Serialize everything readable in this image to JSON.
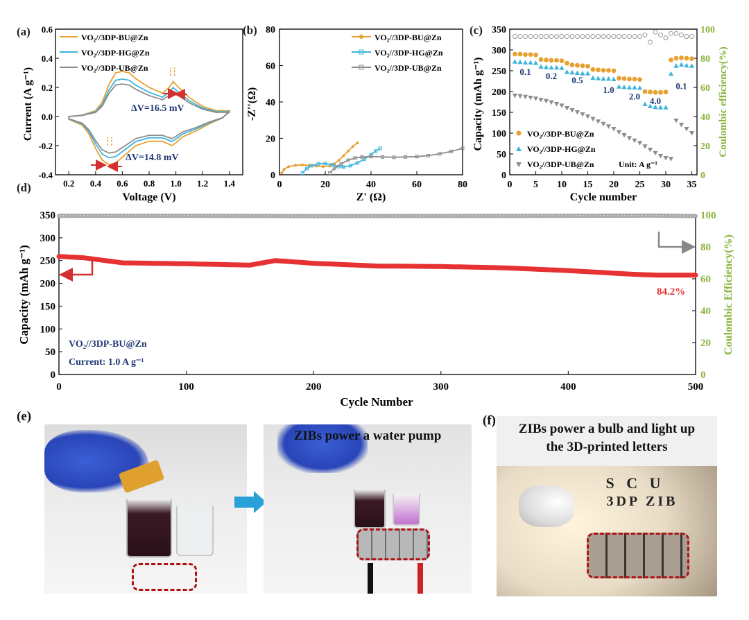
{
  "panel_labels": {
    "a": "(a)",
    "b": "(b)",
    "c": "(c)",
    "d": "(d)",
    "e": "(e)",
    "f": "(f)"
  },
  "colors": {
    "bu": "#e8a030",
    "hg": "#3cb4dc",
    "ub": "#8c8c8c",
    "red": "#e63232",
    "green": "#8ab43c",
    "navy": "#1f3a73",
    "arrow_red": "#d43030",
    "arrow_blue": "#2aa0d8"
  },
  "chart_data": [
    {
      "id": "a",
      "type": "line",
      "xlabel": "Voltage (V)",
      "ylabel": "Current (A g⁻¹)",
      "xlim": [
        0.1,
        1.5
      ],
      "ylim": [
        -0.4,
        0.6
      ],
      "xticks": [
        "0.2",
        "0.4",
        "0.6",
        "0.8",
        "1.0",
        "1.2",
        "1.4"
      ],
      "yticks": [
        "-0.4",
        "-0.2",
        "0.0",
        "0.2",
        "0.4",
        "0.6"
      ],
      "legend": [
        "VO₂//3DP-BU@Zn",
        "VO₂//3DP-HG@Zn",
        "VO₂//3DP-UB@Zn"
      ],
      "annotations": [
        "ΔV=16.5 mV",
        "ΔV=14.8 mV"
      ],
      "series": [
        {
          "name": "VO₂//3DP-BU@Zn",
          "color_key": "bu",
          "anodic_scale": 1.0,
          "cathodic_scale": 1.0
        },
        {
          "name": "VO₂//3DP-HG@Zn",
          "color_key": "hg",
          "anodic_scale": 0.83,
          "cathodic_scale": 0.86
        },
        {
          "name": "VO₂//3DP-UB@Zn",
          "color_key": "ub",
          "anodic_scale": 0.72,
          "cathodic_scale": 0.76
        }
      ],
      "curve_anodic": [
        [
          0.2,
          0.0
        ],
        [
          0.3,
          0.01
        ],
        [
          0.4,
          0.04
        ],
        [
          0.45,
          0.1
        ],
        [
          0.5,
          0.22
        ],
        [
          0.55,
          0.3
        ],
        [
          0.6,
          0.31
        ],
        [
          0.65,
          0.3
        ],
        [
          0.7,
          0.26
        ],
        [
          0.8,
          0.2
        ],
        [
          0.9,
          0.16
        ],
        [
          0.95,
          0.2
        ],
        [
          0.98,
          0.24
        ],
        [
          1.02,
          0.2
        ],
        [
          1.1,
          0.13
        ],
        [
          1.2,
          0.07
        ],
        [
          1.3,
          0.04
        ],
        [
          1.4,
          0.04
        ]
      ],
      "curve_cathodic": [
        [
          1.4,
          0.04
        ],
        [
          1.35,
          -0.01
        ],
        [
          1.25,
          -0.05
        ],
        [
          1.15,
          -0.1
        ],
        [
          1.05,
          -0.14
        ],
        [
          1.0,
          -0.18
        ],
        [
          0.97,
          -0.2
        ],
        [
          0.9,
          -0.17
        ],
        [
          0.8,
          -0.17
        ],
        [
          0.7,
          -0.2
        ],
        [
          0.6,
          -0.28
        ],
        [
          0.55,
          -0.32
        ],
        [
          0.5,
          -0.33
        ],
        [
          0.45,
          -0.3
        ],
        [
          0.4,
          -0.22
        ],
        [
          0.35,
          -0.12
        ],
        [
          0.3,
          -0.06
        ],
        [
          0.2,
          -0.02
        ]
      ]
    },
    {
      "id": "b",
      "type": "line",
      "xlabel": "Z' (Ω)",
      "ylabel": "-Z''(Ω)",
      "xlim": [
        0,
        80
      ],
      "ylim": [
        0,
        80
      ],
      "xticks": [
        "0",
        "20",
        "40",
        "60",
        "80"
      ],
      "yticks": [
        "0",
        "20",
        "40",
        "60",
        "80"
      ],
      "legend": [
        "VO₂//3DP-BU@Zn",
        "VO₂//3DP-HG@Zn",
        "VO₂//3DP-UB@Zn"
      ],
      "series": [
        {
          "name": "VO₂//3DP-BU@Zn",
          "color_key": "bu",
          "points": [
            [
              1,
              1
            ],
            [
              2,
              3
            ],
            [
              4,
              4.5
            ],
            [
              7,
              5.2
            ],
            [
              10,
              5.4
            ],
            [
              13,
              5.2
            ],
            [
              16,
              4.8
            ],
            [
              19,
              4.5
            ],
            [
              22,
              4.8
            ],
            [
              24,
              6
            ],
            [
              26,
              8
            ],
            [
              28,
              10.5
            ],
            [
              30,
              13
            ],
            [
              32,
              15.5
            ],
            [
              34,
              17.5
            ]
          ]
        },
        {
          "name": "VO₂//3DP-HG@Zn",
          "color_key": "hg",
          "points": [
            [
              10,
              1
            ],
            [
              12,
              3.5
            ],
            [
              14,
              5
            ],
            [
              17,
              6
            ],
            [
              20,
              6.2
            ],
            [
              23,
              5.5
            ],
            [
              26,
              4.5
            ],
            [
              28,
              4.2
            ],
            [
              31,
              5
            ],
            [
              34,
              6.5
            ],
            [
              37,
              8.5
            ],
            [
              40,
              11
            ],
            [
              42,
              13
            ],
            [
              44,
              14.5
            ]
          ]
        },
        {
          "name": "VO₂//3DP-UB@Zn",
          "color_key": "ub",
          "points": [
            [
              22,
              1
            ],
            [
              24,
              3.5
            ],
            [
              27,
              6
            ],
            [
              30,
              8
            ],
            [
              33,
              9.2
            ],
            [
              36,
              9.8
            ],
            [
              40,
              10
            ],
            [
              45,
              9.8
            ],
            [
              50,
              9.6
            ],
            [
              55,
              9.8
            ],
            [
              60,
              10
            ],
            [
              65,
              10.5
            ],
            [
              70,
              11.5
            ],
            [
              75,
              12.8
            ],
            [
              80,
              14.5
            ]
          ]
        }
      ]
    },
    {
      "id": "c",
      "type": "scatter",
      "xlabel": "Cycle number",
      "ylabel": "Capacity (mAh g⁻¹)",
      "y2label": "Coulombic efficiency(%)",
      "xlim": [
        0,
        36
      ],
      "ylim": [
        0,
        350
      ],
      "y2lim": [
        0,
        100
      ],
      "xticks": [
        "0",
        "5",
        "10",
        "15",
        "20",
        "25",
        "30",
        "35"
      ],
      "yticks": [
        "0",
        "50",
        "100",
        "150",
        "200",
        "250",
        "300",
        "350"
      ],
      "y2ticks": [
        "0",
        "20",
        "40",
        "60",
        "80",
        "100"
      ],
      "legend": [
        "VO₂//3DP-BU@Zn",
        "VO₂//3DP-HG@Zn",
        "VO₂//3DP-UB@Zn"
      ],
      "unit_label": "Unit: A g⁻¹",
      "rate_labels": [
        "0.1",
        "0.2",
        "0.5",
        "1.0",
        "2.0",
        "4.0",
        "0.1"
      ],
      "series": [
        {
          "name": "VO₂//3DP-BU@Zn",
          "color_key": "bu",
          "marker": "circle",
          "values": [
            290,
            290,
            289,
            289,
            288,
            277,
            276,
            275,
            275,
            274,
            268,
            264,
            263,
            262,
            261,
            253,
            252,
            251,
            251,
            250,
            232,
            231,
            230,
            230,
            229,
            200,
            199,
            198,
            198,
            199,
            276,
            280,
            281,
            280,
            279
          ]
        },
        {
          "name": "VO₂//3DP-HG@Zn",
          "color_key": "hg",
          "marker": "triangle-up",
          "values": [
            272,
            271,
            270,
            270,
            269,
            260,
            259,
            258,
            258,
            257,
            247,
            246,
            245,
            244,
            244,
            233,
            232,
            231,
            231,
            230,
            212,
            211,
            210,
            210,
            209,
            170,
            165,
            163,
            162,
            162,
            243,
            262,
            265,
            263,
            262
          ]
        },
        {
          "name": "VO₂//3DP-UB@Zn",
          "color_key": "ub",
          "marker": "triangle-down",
          "values": [
            190,
            189,
            187,
            185,
            183,
            180,
            177,
            174,
            170,
            166,
            160,
            155,
            150,
            145,
            140,
            134,
            128,
            122,
            116,
            110,
            102,
            95,
            88,
            82,
            76,
            68,
            60,
            52,
            45,
            40,
            38,
            130,
            120,
            110,
            100
          ]
        }
      ],
      "ce_values": [
        95,
        95,
        95,
        95,
        95,
        95,
        95,
        95,
        95,
        95,
        95,
        95,
        95,
        95,
        95,
        95,
        95,
        95,
        95,
        95,
        95,
        95,
        95,
        95,
        95,
        96,
        91,
        98,
        96,
        94,
        97,
        97,
        96,
        95,
        95
      ]
    },
    {
      "id": "d",
      "type": "line",
      "xlabel": "Cycle Number",
      "ylabel": "Capacity (mAh g⁻¹)",
      "y2label": "Coulombic Efficiency(%)",
      "xlim": [
        0,
        500
      ],
      "ylim": [
        0,
        350
      ],
      "y2lim": [
        0,
        100
      ],
      "xticks": [
        "0",
        "100",
        "200",
        "300",
        "400",
        "500"
      ],
      "yticks": [
        "0",
        "50",
        "100",
        "150",
        "200",
        "250",
        "300",
        "350"
      ],
      "y2ticks": [
        "0",
        "20",
        "40",
        "60",
        "80",
        "100"
      ],
      "annotation": "84.2%",
      "note_sample": "VO₂//3DP-BU@Zn",
      "note_current": "Current: 1.0 A g⁻¹",
      "capacity": [
        [
          0,
          259
        ],
        [
          20,
          256
        ],
        [
          50,
          245
        ],
        [
          100,
          243
        ],
        [
          150,
          240
        ],
        [
          170,
          250
        ],
        [
          200,
          244
        ],
        [
          250,
          238
        ],
        [
          300,
          237
        ],
        [
          350,
          234
        ],
        [
          400,
          228
        ],
        [
          450,
          220
        ],
        [
          470,
          218
        ],
        [
          500,
          218
        ]
      ],
      "efficiency": [
        [
          0,
          99.5
        ],
        [
          100,
          99.5
        ],
        [
          200,
          99.3
        ],
        [
          300,
          99.4
        ],
        [
          400,
          99.5
        ],
        [
          470,
          99.6
        ],
        [
          500,
          99.3
        ]
      ]
    }
  ],
  "photos": {
    "e2_caption": "ZIBs power a water pump",
    "f_caption_line1": "ZIBs power  a bulb and light up",
    "f_caption_line2": "the 3D-printed  letters",
    "f_letters_line1": "S C U",
    "f_letters_line2": "3DP ZIB"
  }
}
